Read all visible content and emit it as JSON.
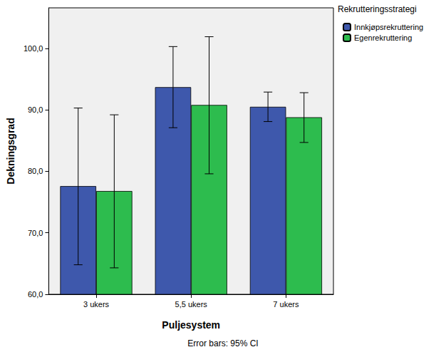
{
  "chart_data": {
    "type": "bar",
    "x_label": "Puljesystem",
    "y_label": "Dekningsgrad",
    "legend_title": "Rekrutteringsstrategi",
    "annotations": [
      "Error bars: 95% CI"
    ],
    "categories": [
      "3 ukers",
      "5,5 ukers",
      "7 ukers"
    ],
    "series": [
      {
        "name": "Innkjøpsrekruttering",
        "color": "#3e58ac",
        "values": [
          77.6,
          93.7,
          90.5
        ],
        "ci_low": [
          64.8,
          87.1,
          88.1
        ],
        "ci_high": [
          90.3,
          100.3,
          92.9
        ]
      },
      {
        "name": "Egenrekruttering",
        "color": "#2dbc4e",
        "values": [
          76.8,
          90.8,
          88.8
        ],
        "ci_low": [
          64.3,
          79.6,
          84.7
        ],
        "ci_high": [
          89.2,
          101.9,
          92.8
        ]
      }
    ],
    "ylim": [
      60,
      106.6
    ],
    "yticks": [
      {
        "value": 60,
        "label": "60,0"
      },
      {
        "value": 70,
        "label": "70,0"
      },
      {
        "value": 80,
        "label": "80,0"
      },
      {
        "value": 90,
        "label": "90,0"
      },
      {
        "value": 100,
        "label": "100,0"
      }
    ],
    "grid": false,
    "legend": "upper right"
  }
}
